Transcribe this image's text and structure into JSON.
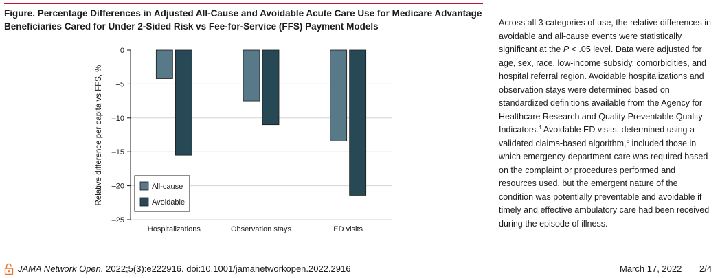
{
  "figure": {
    "title": "Figure. Percentage Differences in Adjusted All-Cause and Avoidable Acute Care Use for Medicare Advantage Beneficiaries Cared for Under 2-Sided Risk vs Fee-for-Service (FFS) Payment Models"
  },
  "chart_data": {
    "type": "bar",
    "title": "",
    "xlabel": "",
    "ylabel": "Relative difference per capita vs FFS, %",
    "categories": [
      "Hospitalizations",
      "Observation stays",
      "ED visits"
    ],
    "series": [
      {
        "name": "All-cause",
        "values": [
          -4.2,
          -7.5,
          -13.4
        ],
        "color": "#587a88"
      },
      {
        "name": "Avoidable",
        "values": [
          -15.5,
          -11.0,
          -21.4
        ],
        "color": "#274955"
      }
    ],
    "ylim": [
      -25,
      0
    ],
    "yticks": [
      0,
      -5,
      -10,
      -15,
      -20,
      -25
    ],
    "ytick_labels": [
      "0",
      "–5",
      "–10",
      "–15",
      "–20",
      "–25"
    ],
    "grid": true,
    "legend_position": "bottom-left",
    "bar_edge_color": "#1a1a1a"
  },
  "body": {
    "text_a": "Across all 3 categories of use, the relative differences in avoidable and all-cause events were statistically significant at the ",
    "p_symbol": "P",
    "text_b": " < .05 level. Data were adjusted for age, sex, race, low-income subsidy, comorbidities, and hospital referral region. Avoidable hospitalizations and observation stays were determined based on standardized definitions available from the Agency for Healthcare Research and Quality Preventable Quality Indicators.",
    "ref_4": "4",
    "text_c": " Avoidable ED visits, determined using a validated claims-based algorithm,",
    "ref_5": "5",
    "text_d": " included those in which emergency department care was required based on the complaint or procedures performed and resources used, but the emergent nature of the condition was potentially preventable and avoidable if timely and effective ambulatory care had been received during the episode of illness."
  },
  "footer": {
    "icon": "open-lock-icon",
    "journal": "JAMA Network Open.",
    "citation": " 2022;5(3):e222916. doi:10.1001/jamanetworkopen.2022.2916",
    "date": "March 17, 2022",
    "page": "2/4"
  },
  "colors": {
    "accent": "#c8102e",
    "all_cause": "#587a88",
    "avoidable": "#274955"
  }
}
